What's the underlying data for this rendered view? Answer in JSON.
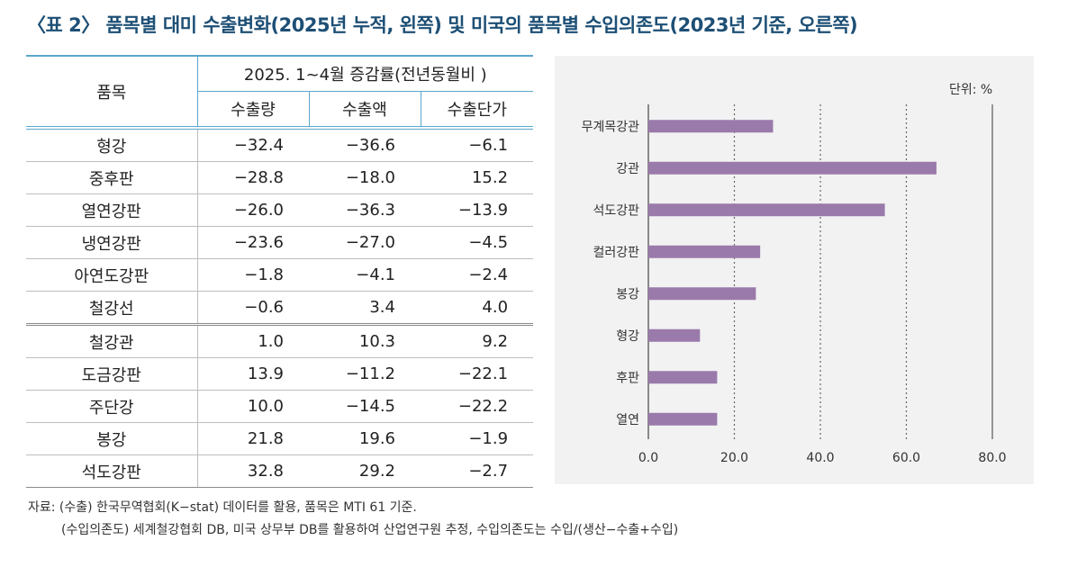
{
  "title": "〈표 2〉 품목별 대미 수출변화(2025년 누적, 왼쪽) 및 미국의 품목별 수입의존도(2023년 기준, 오른쪽)",
  "table": {
    "item_header": "품목",
    "group_header": "2025. 1~4월 증감률(전년동월비 )",
    "columns": [
      "수출량",
      "수출액",
      "수출단가"
    ],
    "rows": [
      {
        "item": "형강",
        "values": [
          "−32.4",
          "−36.6",
          "−6.1"
        ]
      },
      {
        "item": "중후판",
        "values": [
          "−28.8",
          "−18.0",
          "15.2"
        ]
      },
      {
        "item": "열연강판",
        "values": [
          "−26.0",
          "−36.3",
          "−13.9"
        ]
      },
      {
        "item": "냉연강판",
        "values": [
          "−23.6",
          "−27.0",
          "−4.5"
        ]
      },
      {
        "item": "아연도강판",
        "values": [
          "−1.8",
          "−4.1",
          "−2.4"
        ]
      },
      {
        "item": "철강선",
        "values": [
          "−0.6",
          "3.4",
          "4.0"
        ]
      },
      {
        "item": "철강관",
        "values": [
          "1.0",
          "10.3",
          "9.2"
        ]
      },
      {
        "item": "도금강판",
        "values": [
          "13.9",
          "−11.2",
          "−22.1"
        ]
      },
      {
        "item": "주단강",
        "values": [
          "10.0",
          "−14.5",
          "−22.2"
        ]
      },
      {
        "item": "봉강",
        "values": [
          "21.8",
          "19.6",
          "−1.9"
        ]
      },
      {
        "item": "석도강판",
        "values": [
          "32.8",
          "29.2",
          "−2.7"
        ]
      }
    ]
  },
  "chart_data": {
    "type": "bar",
    "orientation": "horizontal",
    "unit_label": "단위: %",
    "categories": [
      "무계목강관",
      "강관",
      "석도강판",
      "컬러강판",
      "봉강",
      "형강",
      "후판",
      "열연"
    ],
    "values": [
      29,
      67,
      55,
      26,
      25,
      12,
      16,
      16
    ],
    "xlim": [
      0,
      80
    ],
    "ticks": [
      "0.0",
      "20.0",
      "40.0",
      "60.0",
      "80.0"
    ],
    "grid": "dotted vertical at 20, 40, 60",
    "bar_color": "#9a7aab"
  },
  "notes": [
    "자료: (수출) 한국무역협회(K−stat) 데이터를 활용, 품목은 MTI 61 기준.",
    "(수입의존도) 세계철강협회 DB, 미국 상무부 DB를 활용하여 산업연구원 추정, 수입의존도는 수입/(생산−수출+수입)"
  ]
}
